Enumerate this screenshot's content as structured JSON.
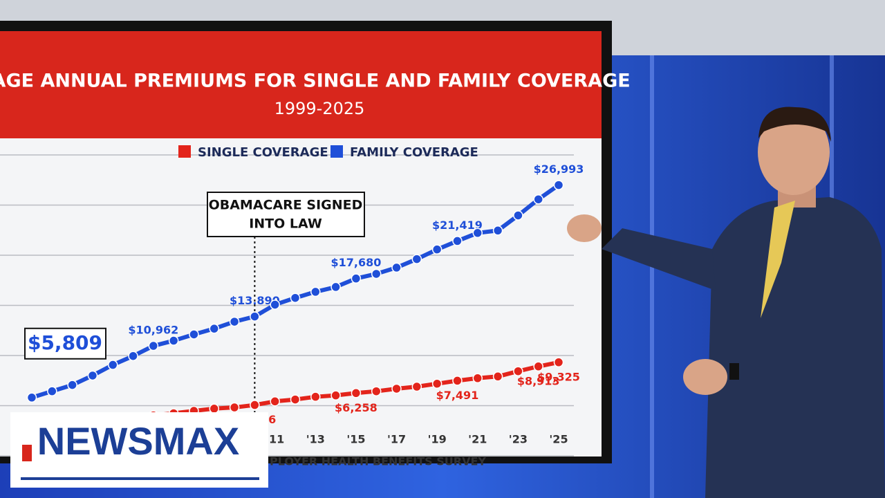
{
  "chart_data": {
    "type": "line",
    "title": "ERAGE ANNUAL PREMIUMS FOR SINGLE AND FAMILY COVERAGE",
    "subtitle": "1999-2025",
    "annotation": [
      "OBAMACARE SIGNED",
      "INTO LAW"
    ],
    "annotation_x": 2010,
    "source": "PLOYER HEALTH BENEFITS SURVEY",
    "logo": "NEWSMAX",
    "x": [
      1999,
      2000,
      2001,
      2002,
      2003,
      2004,
      2005,
      2006,
      2007,
      2008,
      2009,
      2010,
      2011,
      2012,
      2013,
      2014,
      2015,
      2016,
      2017,
      2018,
      2019,
      2020,
      2021,
      2022,
      2023,
      2024,
      2025
    ],
    "xlim": [
      1999,
      2025
    ],
    "xticks": [
      {
        "value": 2011,
        "label": "'11"
      },
      {
        "value": 2013,
        "label": "'13"
      },
      {
        "value": 2015,
        "label": "'15"
      },
      {
        "value": 2017,
        "label": "'17"
      },
      {
        "value": 2019,
        "label": "'19"
      },
      {
        "value": 2021,
        "label": "'21"
      },
      {
        "value": 2023,
        "label": "'23"
      },
      {
        "value": 2025,
        "label": "'25"
      }
    ],
    "ylim": [
      0,
      30000
    ],
    "yticks": [
      0,
      5000,
      10000,
      15000,
      20000,
      25000,
      30000
    ],
    "grid": true,
    "series": [
      {
        "name": "SINGLE COVERAGE",
        "color": "#e3241b",
        "values": [
          2196,
          2471,
          2689,
          3083,
          3383,
          3695,
          4024,
          4242,
          4479,
          4704,
          4824,
          5066,
          5429,
          5615,
          5884,
          6025,
          6258,
          6435,
          6690,
          6896,
          7188,
          7491,
          7739,
          7911,
          8435,
          8913,
          9325
        ],
        "value_labels": [
          null,
          null,
          null,
          null,
          null,
          null,
          null,
          null,
          null,
          null,
          null,
          "$5,066",
          null,
          null,
          null,
          null,
          "$6,258",
          null,
          null,
          null,
          null,
          "$7,491",
          null,
          null,
          null,
          "$8,913",
          "$9,325"
        ]
      },
      {
        "name": "FAMILY COVERAGE",
        "color": "#1f4fd8",
        "values": [
          5809,
          6438,
          7061,
          8003,
          9068,
          9950,
          10962,
          11480,
          12106,
          12680,
          13375,
          13890,
          15073,
          15745,
          16351,
          16834,
          17680,
          18142,
          18764,
          19616,
          20576,
          21419,
          22221,
          22463,
          23968,
          25572,
          26993
        ],
        "value_labels": [
          "$5,809",
          null,
          null,
          null,
          null,
          null,
          "$10,962",
          null,
          null,
          null,
          null,
          "$13.890",
          null,
          null,
          null,
          null,
          "$17,680",
          null,
          null,
          null,
          null,
          "$21,419",
          null,
          null,
          null,
          null,
          "$26,993"
        ]
      }
    ]
  }
}
